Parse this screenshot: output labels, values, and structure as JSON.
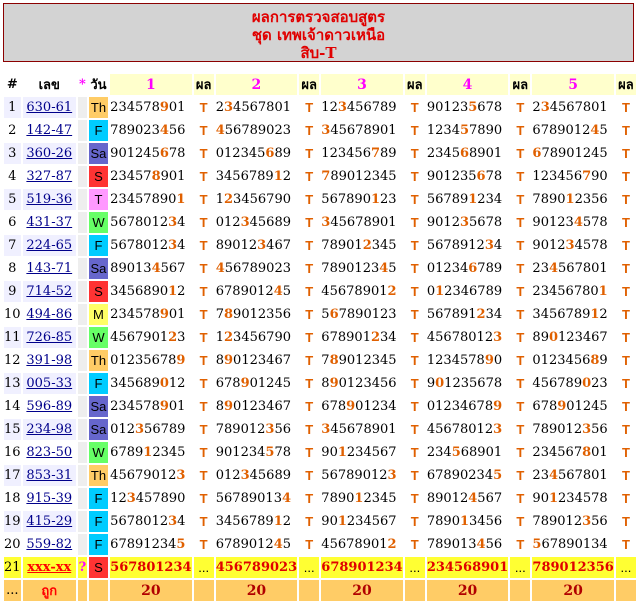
{
  "title": {
    "line1": "ผลการตรวจสอบสูตร",
    "line2": "ชุด เทพเจ้าดาวเหนือ",
    "line3": "สิบ-T"
  },
  "headers": {
    "num": "#",
    "lek": "เลข",
    "star": "*",
    "day": "วัน",
    "sets": [
      "1",
      "2",
      "3",
      "4",
      "5"
    ],
    "pol": "ผล"
  },
  "day_colors": {
    "Th": "#ffcc66",
    "F": "#00ccff",
    "Sa": "#6666cc",
    "S": "#ff3333",
    "M": "#ffff66",
    "T": "#ff99ff",
    "W": "#66ff66"
  },
  "rows": [
    {
      "num": "1",
      "lek": "630-61",
      "day": "Th",
      "sets": [
        "234578901",
        "234567801",
        "123456789",
        "901235678",
        "234567801"
      ],
      "hl": [
        6,
        1,
        2,
        5,
        1
      ],
      "res": [
        "T",
        "T",
        "T",
        "T",
        "T"
      ]
    },
    {
      "num": "2",
      "lek": "142-47",
      "day": "F",
      "sets": [
        "789023456",
        "456789023",
        "345678901",
        "123457890",
        "678901245"
      ],
      "hl": [
        6,
        0,
        0,
        4,
        7
      ],
      "res": [
        "T",
        "T",
        "T",
        "T",
        "T"
      ]
    },
    {
      "num": "3",
      "lek": "360-26",
      "day": "Sa",
      "sets": [
        "901245678",
        "012345689",
        "123456789",
        "234568901",
        "678901245"
      ],
      "hl": [
        6,
        6,
        6,
        4,
        0
      ],
      "res": [
        "T",
        "T",
        "T",
        "T",
        "T"
      ]
    },
    {
      "num": "4",
      "lek": "327-87",
      "day": "S",
      "sets": [
        "234578901",
        "345678912",
        "789012345",
        "901235678",
        "123456790"
      ],
      "hl": [
        5,
        7,
        0,
        6,
        6
      ],
      "res": [
        "T",
        "T",
        "T",
        "T",
        "T"
      ]
    },
    {
      "num": "5",
      "lek": "519-36",
      "day": "T",
      "sets": [
        "234578901",
        "123456790",
        "567890123",
        "567891234",
        "789012356"
      ],
      "hl": [
        8,
        1,
        6,
        5,
        4
      ],
      "res": [
        "T",
        "T",
        "T",
        "T",
        "T"
      ]
    },
    {
      "num": "6",
      "lek": "431-37",
      "day": "W",
      "sets": [
        "567801234",
        "012345689",
        "345678901",
        "901235678",
        "901234578"
      ],
      "hl": [
        7,
        3,
        0,
        4,
        5
      ],
      "res": [
        "T",
        "T",
        "T",
        "T",
        "T"
      ]
    },
    {
      "num": "7",
      "lek": "224-65",
      "day": "F",
      "sets": [
        "567801234",
        "890123467",
        "789012345",
        "567891234",
        "901234578"
      ],
      "hl": [
        7,
        5,
        5,
        7,
        4
      ],
      "res": [
        "T",
        "T",
        "T",
        "T",
        "T"
      ]
    },
    {
      "num": "8",
      "lek": "143-71",
      "day": "Sa",
      "sets": [
        "890134567",
        "456789023",
        "789012345",
        "012346789",
        "234567801"
      ],
      "hl": [
        5,
        0,
        7,
        5,
        2
      ],
      "res": [
        "T",
        "T",
        "T",
        "T",
        "T"
      ]
    },
    {
      "num": "9",
      "lek": "714-52",
      "day": "S",
      "sets": [
        "345689012",
        "678901245",
        "456789012",
        "012346789",
        "234567801"
      ],
      "hl": [
        7,
        7,
        8,
        1,
        8
      ],
      "res": [
        "T",
        "T",
        "T",
        "T",
        "T"
      ]
    },
    {
      "num": "10",
      "lek": "494-86",
      "day": "M",
      "sets": [
        "234578901",
        "789012356",
        "567890123",
        "567891234",
        "345678912"
      ],
      "hl": [
        6,
        1,
        1,
        6,
        7
      ],
      "res": [
        "T",
        "T",
        "T",
        "T",
        "T"
      ]
    },
    {
      "num": "11",
      "lek": "726-85",
      "day": "W",
      "sets": [
        "456790123",
        "123456790",
        "678901234",
        "456780123",
        "890123467"
      ],
      "hl": [
        7,
        1,
        6,
        8,
        2
      ],
      "res": [
        "T",
        "T",
        "T",
        "T",
        "T"
      ]
    },
    {
      "num": "12",
      "lek": "391-98",
      "day": "Th",
      "sets": [
        "012356789",
        "890123467",
        "789012345",
        "123457890",
        "012345689"
      ],
      "hl": [
        8,
        1,
        1,
        7,
        7
      ],
      "res": [
        "T",
        "T",
        "T",
        "T",
        "T"
      ]
    },
    {
      "num": "13",
      "lek": "005-33",
      "day": "F",
      "sets": [
        "345689012",
        "678901245",
        "890123456",
        "901235678",
        "456789023"
      ],
      "hl": [
        6,
        3,
        1,
        1,
        6
      ],
      "res": [
        "T",
        "T",
        "T",
        "T",
        "T"
      ]
    },
    {
      "num": "14",
      "lek": "596-89",
      "day": "Sa",
      "sets": [
        "234578901",
        "890123467",
        "678901234",
        "012346789",
        "678901245"
      ],
      "hl": [
        6,
        1,
        3,
        8,
        3
      ],
      "res": [
        "T",
        "T",
        "T",
        "T",
        "T"
      ]
    },
    {
      "num": "15",
      "lek": "234-98",
      "day": "Sa",
      "sets": [
        "012356789",
        "789012356",
        "345678901",
        "456780123",
        "789012356"
      ],
      "hl": [
        3,
        6,
        0,
        8,
        6
      ],
      "res": [
        "T",
        "T",
        "T",
        "T",
        "T"
      ]
    },
    {
      "num": "16",
      "lek": "823-50",
      "day": "W",
      "sets": [
        "678912345",
        "901234578",
        "901234567",
        "234568901",
        "234567801"
      ],
      "hl": [
        4,
        6,
        2,
        3,
        6
      ],
      "res": [
        "T",
        "T",
        "T",
        "T",
        "T"
      ]
    },
    {
      "num": "17",
      "lek": "853-31",
      "day": "Th",
      "sets": [
        "456790123",
        "012345689",
        "567890123",
        "678902345",
        "234567801"
      ],
      "hl": [
        8,
        3,
        8,
        8,
        2
      ],
      "res": [
        "T",
        "T",
        "T",
        "T",
        "T"
      ]
    },
    {
      "num": "18",
      "lek": "915-39",
      "day": "F",
      "sets": [
        "123457890",
        "567890134",
        "789012345",
        "890124567",
        "901234578"
      ],
      "hl": [
        2,
        8,
        4,
        5,
        2
      ],
      "res": [
        "T",
        "T",
        "T",
        "T",
        "T"
      ]
    },
    {
      "num": "19",
      "lek": "415-29",
      "day": "F",
      "sets": [
        "567801234",
        "345678912",
        "901234567",
        "789013456",
        "789012356"
      ],
      "hl": [
        7,
        7,
        2,
        4,
        6
      ],
      "res": [
        "T",
        "T",
        "T",
        "T",
        "T"
      ]
    },
    {
      "num": "20",
      "lek": "559-82",
      "day": "F",
      "sets": [
        "678912345",
        "678901245",
        "456789012",
        "789013456",
        "567890134"
      ],
      "hl": [
        8,
        7,
        8,
        6,
        0
      ],
      "res": [
        "T",
        "T",
        "T",
        "T",
        "T"
      ]
    }
  ],
  "prediction": {
    "num": "21",
    "lek": "xxx-xx",
    "star": "?",
    "day": "S",
    "sets": [
      "567801234",
      "456789023",
      "678901234",
      "234568901",
      "789012356"
    ],
    "pol": "..."
  },
  "footer": {
    "dots": "...",
    "label": "ถูก",
    "totals": [
      "20",
      "20",
      "20",
      "20",
      "20"
    ]
  }
}
